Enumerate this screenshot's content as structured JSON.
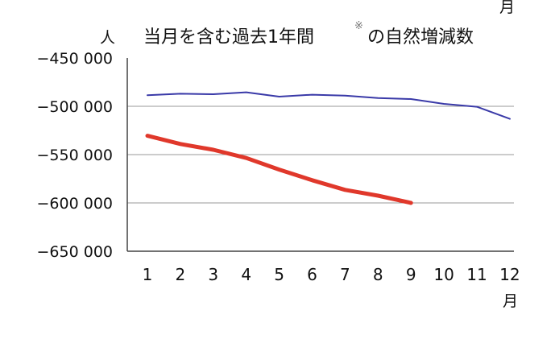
{
  "chart_data": {
    "type": "line",
    "title": "当月を含む過去1年間",
    "title_mark": "※",
    "title_suffix": "の自然増減数",
    "y_unit": "人",
    "x_unit_top": "月",
    "x_unit_bottom": "月",
    "x": [
      1,
      2,
      3,
      4,
      5,
      6,
      7,
      8,
      9,
      10,
      11,
      12
    ],
    "y_ticks": [
      "−450 000",
      "−500 000",
      "−550 000",
      "−600 000",
      "−650 000"
    ],
    "ylim": [
      -650000,
      -450000
    ],
    "grid": true,
    "series": [
      {
        "color": "#3a3aa8",
        "values": [
          -488500,
          -487000,
          -487500,
          -485500,
          -490000,
          -488000,
          -489000,
          -491500,
          -492500,
          -497500,
          -500500,
          -513000
        ]
      },
      {
        "color": "#e0382b",
        "values": [
          -530500,
          -539000,
          -545000,
          -553500,
          -565500,
          -576500,
          -586500,
          -592500,
          -600000,
          null,
          null,
          null
        ]
      }
    ]
  }
}
